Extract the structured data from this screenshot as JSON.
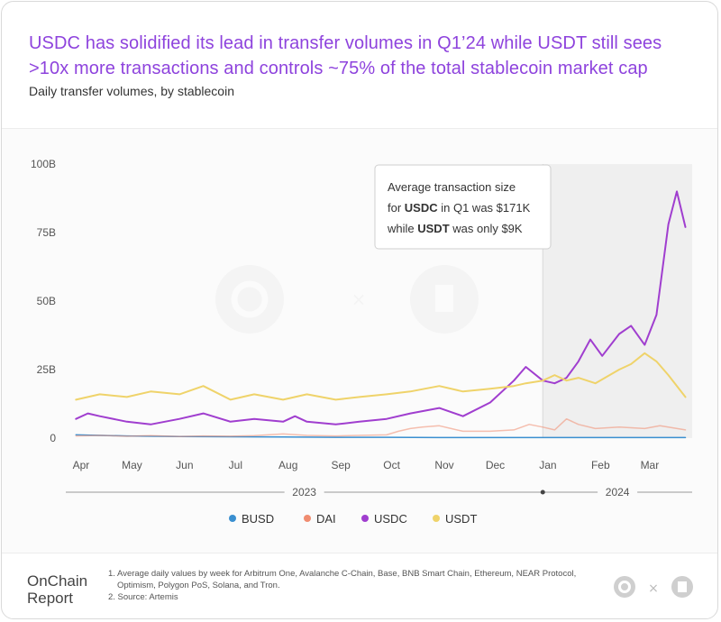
{
  "header": {
    "title": "USDC has solidified its lead in transfer volumes in Q1’24 while USDT still sees >10x more transactions and controls ~75% of the total stablecoin market cap",
    "subtitle": "Daily transfer volumes, by stablecoin"
  },
  "annotation": {
    "line1": "Average transaction size",
    "line2_pre": "for ",
    "line2_bold": "USDC",
    "line2_post": " in Q1 was $171K",
    "line3_pre": "while ",
    "line3_bold": "USDT",
    "line3_post": " was only $9K"
  },
  "footer": {
    "brand_line1": "OnChain",
    "brand_line2": "Report",
    "note1": "1. Average daily values by week for Arbitrum One, Avalanche C-Chain, Base, BNB Smart Chain, Ethereum, NEAR Protocol,",
    "note1b": "Optimism, Polygon PoS, Solana, and Tron.",
    "note2": "2. Source: Artemis"
  },
  "colors": {
    "title": "#8e43dd",
    "BUSD": "#3a8fd0",
    "DAI": "#f08c70",
    "USDC": "#a03ecf",
    "USDT": "#efd36a",
    "highlight": "#efefef"
  },
  "chart_data": {
    "type": "line",
    "ylim": [
      0,
      100
    ],
    "y_ticks": [
      "0",
      "25B",
      "50B",
      "75B",
      "100B"
    ],
    "y_tick_values": [
      0,
      25,
      50,
      75,
      100
    ],
    "unit": "billions USD",
    "x_start_month": "Apr 2023",
    "x_end_month": "Mar 2024",
    "x_tick_labels": [
      "Apr",
      "May",
      "Jun",
      "Jul",
      "Aug",
      "Sep",
      "Oct",
      "Nov",
      "Dec",
      "Jan",
      "Feb",
      "Mar"
    ],
    "year_labels": [
      "2023",
      "2024"
    ],
    "highlight_period": [
      "2024-01-01",
      "2024-03-31"
    ],
    "legend": [
      "BUSD",
      "DAI",
      "USDC",
      "USDT"
    ],
    "series": [
      {
        "name": "BUSD",
        "points": [
          [
            "2023-04-01",
            1.2
          ],
          [
            "2023-05-01",
            0.8
          ],
          [
            "2023-06-01",
            0.6
          ],
          [
            "2023-07-01",
            0.5
          ],
          [
            "2023-08-01",
            0.4
          ],
          [
            "2023-09-01",
            0.3
          ],
          [
            "2023-10-01",
            0.3
          ],
          [
            "2023-11-01",
            0.2
          ],
          [
            "2023-12-01",
            0.2
          ],
          [
            "2024-01-01",
            0.2
          ],
          [
            "2024-02-01",
            0.2
          ],
          [
            "2024-03-01",
            0.2
          ],
          [
            "2024-03-25",
            0.2
          ]
        ]
      },
      {
        "name": "DAI",
        "points": [
          [
            "2023-04-01",
            0.8
          ],
          [
            "2023-04-15",
            1.0
          ],
          [
            "2023-05-01",
            0.7
          ],
          [
            "2023-05-15",
            0.9
          ],
          [
            "2023-06-01",
            0.6
          ],
          [
            "2023-06-15",
            0.8
          ],
          [
            "2023-07-01",
            0.7
          ],
          [
            "2023-07-15",
            0.9
          ],
          [
            "2023-08-01",
            1.5
          ],
          [
            "2023-08-15",
            1.0
          ],
          [
            "2023-09-01",
            0.8
          ],
          [
            "2023-09-15",
            1.0
          ],
          [
            "2023-10-01",
            1.2
          ],
          [
            "2023-10-08",
            2.5
          ],
          [
            "2023-10-15",
            3.5
          ],
          [
            "2023-10-22",
            4.0
          ],
          [
            "2023-11-01",
            4.5
          ],
          [
            "2023-11-08",
            3.5
          ],
          [
            "2023-11-15",
            2.5
          ],
          [
            "2023-12-01",
            2.5
          ],
          [
            "2023-12-15",
            3.0
          ],
          [
            "2023-12-24",
            5.0
          ],
          [
            "2024-01-01",
            4.0
          ],
          [
            "2024-01-08",
            3.0
          ],
          [
            "2024-01-15",
            7.0
          ],
          [
            "2024-01-22",
            5.0
          ],
          [
            "2024-02-01",
            3.5
          ],
          [
            "2024-02-15",
            4.0
          ],
          [
            "2024-03-01",
            3.5
          ],
          [
            "2024-03-10",
            4.5
          ],
          [
            "2024-03-25",
            3.0
          ]
        ]
      },
      {
        "name": "USDC",
        "points": [
          [
            "2023-04-01",
            7
          ],
          [
            "2023-04-08",
            9
          ],
          [
            "2023-04-15",
            8
          ],
          [
            "2023-05-01",
            6
          ],
          [
            "2023-05-15",
            5
          ],
          [
            "2023-06-01",
            7
          ],
          [
            "2023-06-15",
            9
          ],
          [
            "2023-07-01",
            6
          ],
          [
            "2023-07-15",
            7
          ],
          [
            "2023-08-01",
            6
          ],
          [
            "2023-08-08",
            8
          ],
          [
            "2023-08-15",
            6
          ],
          [
            "2023-09-01",
            5
          ],
          [
            "2023-09-15",
            6
          ],
          [
            "2023-10-01",
            7
          ],
          [
            "2023-10-15",
            9
          ],
          [
            "2023-11-01",
            11
          ],
          [
            "2023-11-15",
            8
          ],
          [
            "2023-12-01",
            13
          ],
          [
            "2023-12-15",
            21
          ],
          [
            "2023-12-22",
            26
          ],
          [
            "2024-01-01",
            21
          ],
          [
            "2024-01-08",
            20
          ],
          [
            "2024-01-15",
            22
          ],
          [
            "2024-01-22",
            28
          ],
          [
            "2024-01-29",
            36
          ],
          [
            "2024-02-05",
            30
          ],
          [
            "2024-02-15",
            38
          ],
          [
            "2024-02-22",
            41
          ],
          [
            "2024-03-01",
            34
          ],
          [
            "2024-03-08",
            45
          ],
          [
            "2024-03-15",
            78
          ],
          [
            "2024-03-20",
            90
          ],
          [
            "2024-03-25",
            77
          ]
        ]
      },
      {
        "name": "USDT",
        "points": [
          [
            "2023-04-01",
            14
          ],
          [
            "2023-04-15",
            16
          ],
          [
            "2023-05-01",
            15
          ],
          [
            "2023-05-15",
            17
          ],
          [
            "2023-06-01",
            16
          ],
          [
            "2023-06-15",
            19
          ],
          [
            "2023-07-01",
            14
          ],
          [
            "2023-07-15",
            16
          ],
          [
            "2023-08-01",
            14
          ],
          [
            "2023-08-15",
            16
          ],
          [
            "2023-09-01",
            14
          ],
          [
            "2023-09-15",
            15
          ],
          [
            "2023-10-01",
            16
          ],
          [
            "2023-10-15",
            17
          ],
          [
            "2023-11-01",
            19
          ],
          [
            "2023-11-15",
            17
          ],
          [
            "2023-12-01",
            18
          ],
          [
            "2023-12-15",
            19
          ],
          [
            "2023-12-22",
            20
          ],
          [
            "2024-01-01",
            21
          ],
          [
            "2024-01-08",
            23
          ],
          [
            "2024-01-15",
            21
          ],
          [
            "2024-01-22",
            22
          ],
          [
            "2024-02-01",
            20
          ],
          [
            "2024-02-15",
            25
          ],
          [
            "2024-02-22",
            27
          ],
          [
            "2024-03-01",
            31
          ],
          [
            "2024-03-08",
            28
          ],
          [
            "2024-03-15",
            23
          ],
          [
            "2024-03-25",
            15
          ]
        ]
      }
    ]
  }
}
